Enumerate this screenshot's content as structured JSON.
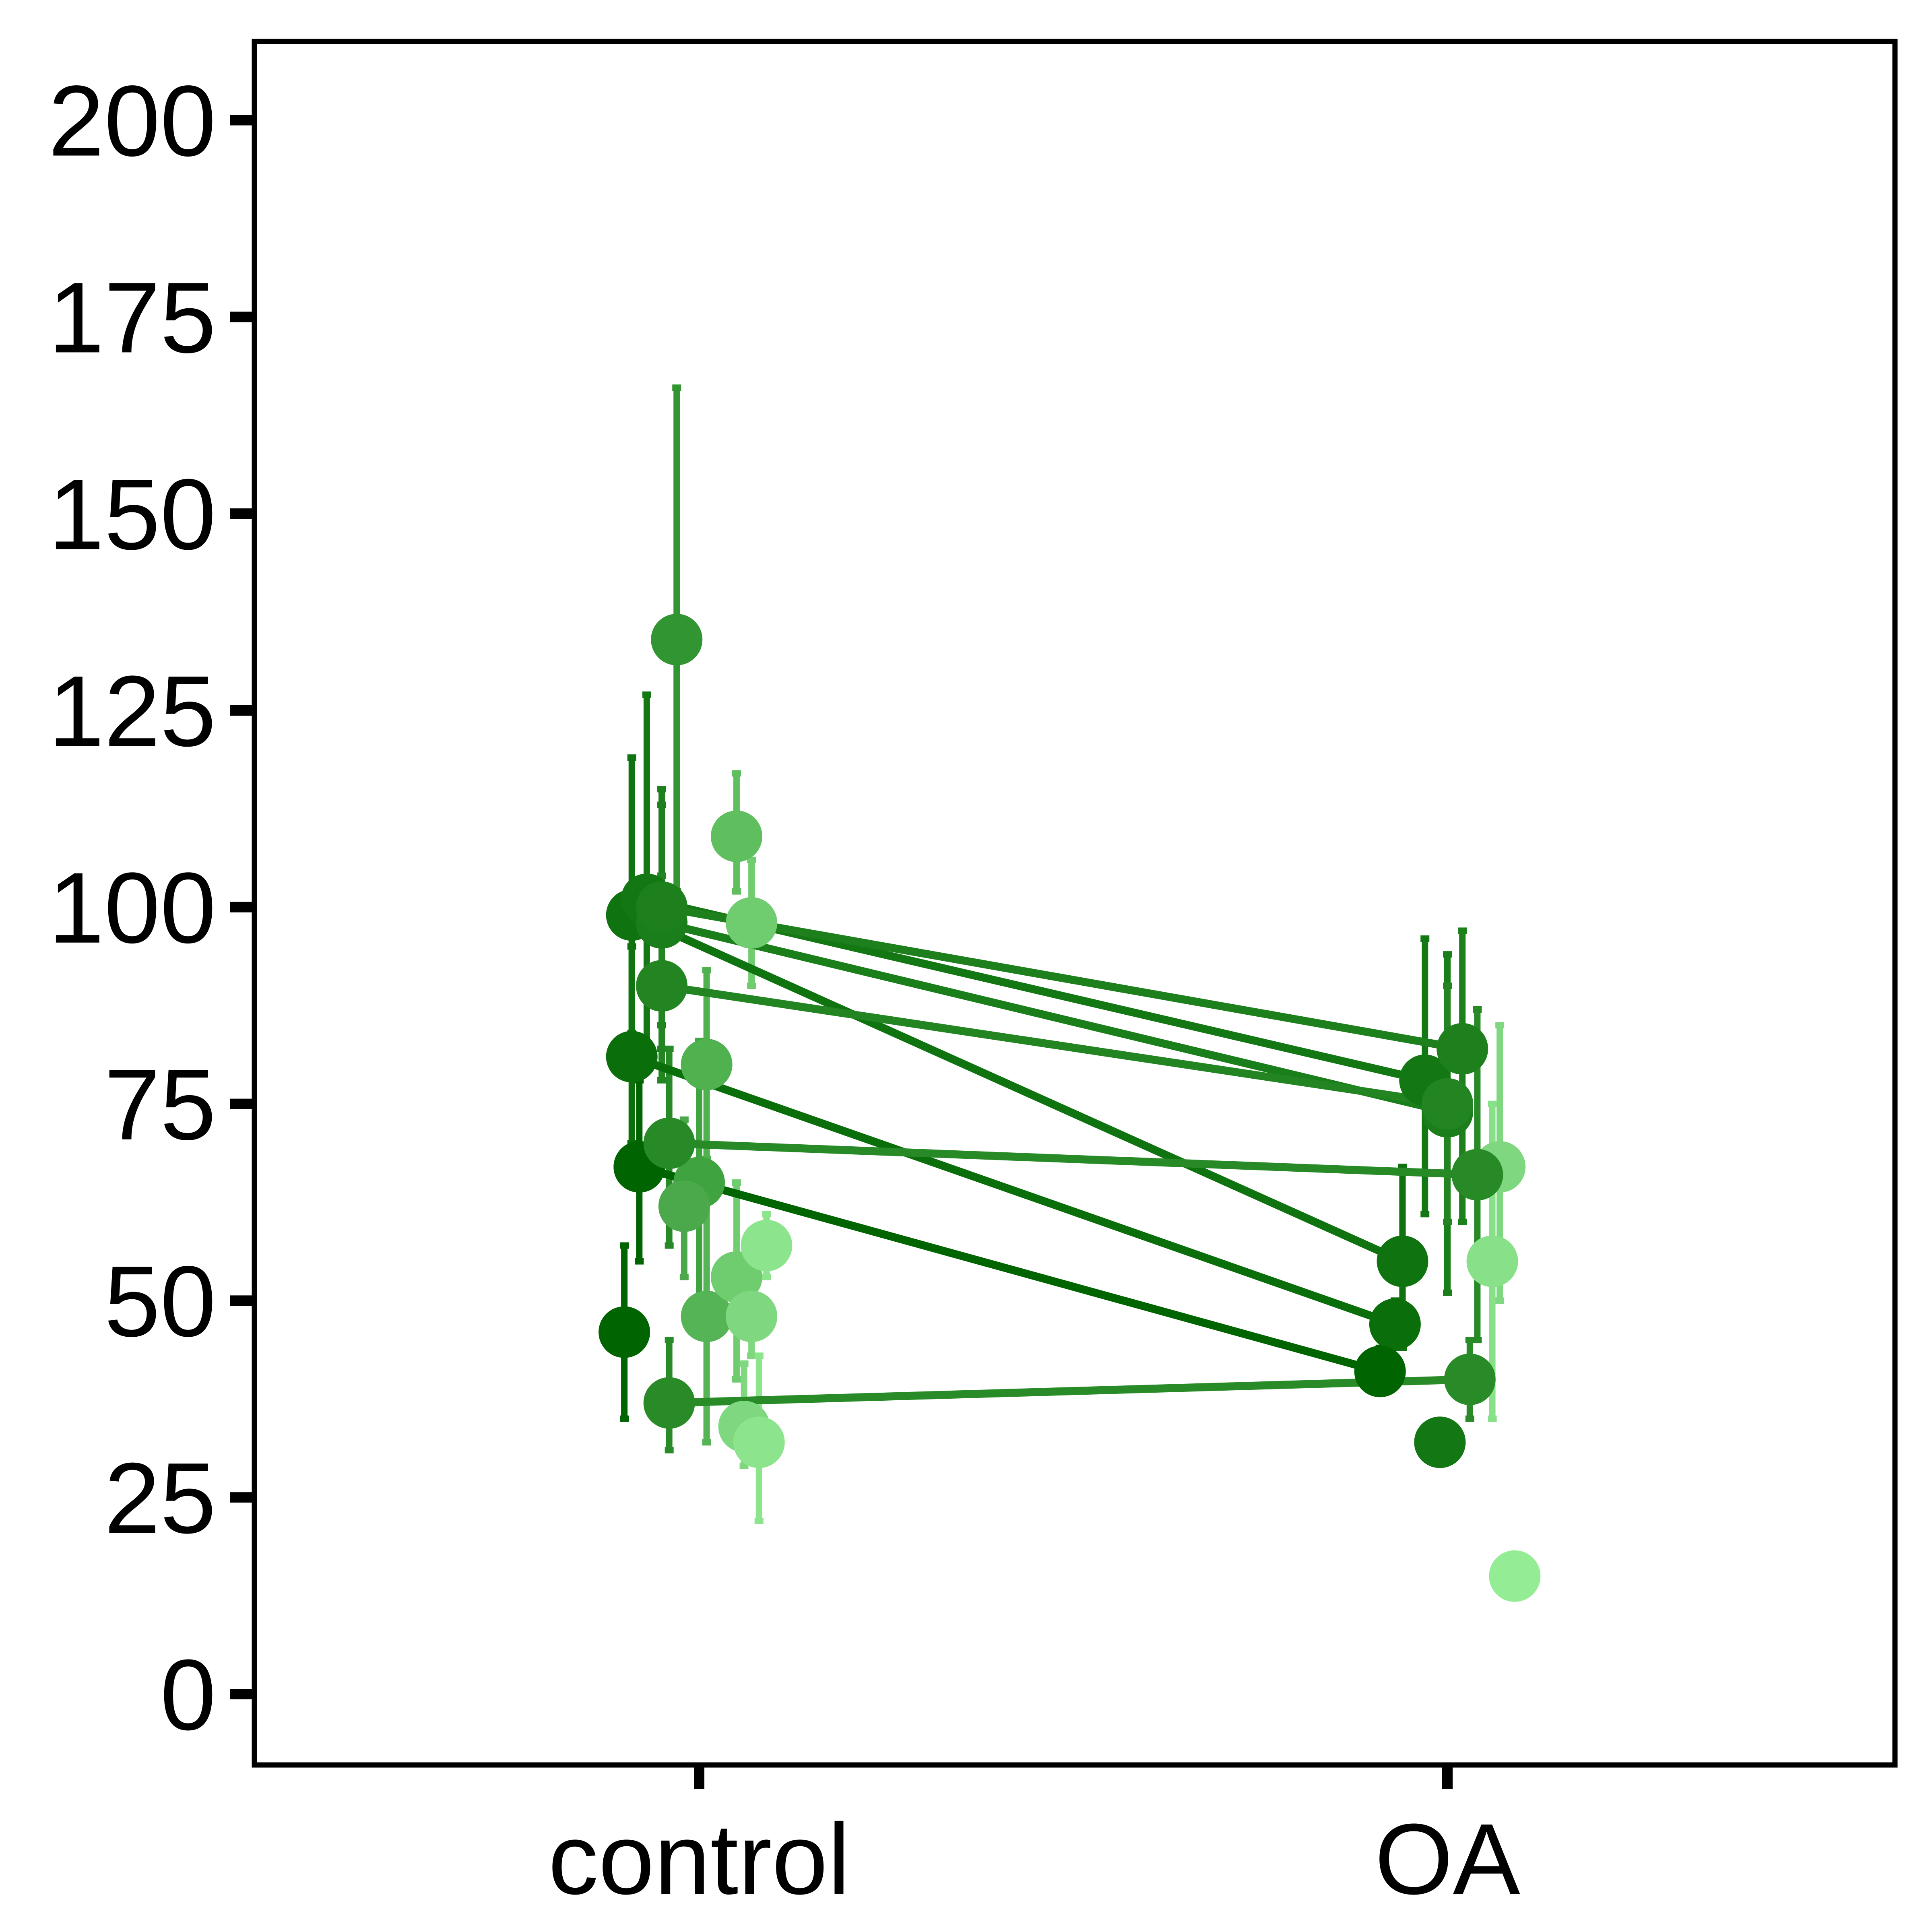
{
  "chart_data": {
    "type": "scatter",
    "title": "",
    "xlabel": "",
    "ylabel": "",
    "categories": [
      "control",
      "OA"
    ],
    "ylim": [
      -9,
      210
    ],
    "yticks": [
      0,
      25,
      50,
      75,
      100,
      125,
      150,
      175,
      200
    ],
    "grid": false,
    "legend": "none",
    "colors": [
      "#006400",
      "#0a6e0a",
      "#137813",
      "#1d801d",
      "#278a27",
      "#319531",
      "#3fa33f",
      "#4fb24f",
      "#5fbf5f",
      "#6fcc6f",
      "#7fd87f",
      "#8ce58c"
    ],
    "paired_series": [
      {
        "control": {
          "pos": -0.09,
          "y": 81,
          "err": [
            70,
            95
          ]
        },
        "OA": {
          "pos": -0.07,
          "y": 47,
          "err": [
            44,
            50
          ]
        },
        "color": "#0a6e0a"
      },
      {
        "control": {
          "pos": -0.08,
          "y": 67,
          "err": [
            55,
            78
          ]
        },
        "OA": {
          "pos": -0.09,
          "y": 41,
          "err": [
            39,
            44
          ]
        },
        "color": "#006400"
      },
      {
        "control": {
          "pos": -0.09,
          "y": 99,
          "err": [
            84,
            119
          ]
        },
        "OA": {
          "pos": -0.06,
          "y": 55,
          "err": [
            44,
            67
          ]
        },
        "color": "#0f730f"
      },
      {
        "control": {
          "pos": -0.07,
          "y": 101,
          "err": [
            80,
            127
          ]
        },
        "OA": {
          "pos": -0.03,
          "y": 78,
          "err": [
            61,
            96
          ]
        },
        "color": "#137813"
      },
      {
        "control": {
          "pos": -0.05,
          "y": 98,
          "err": [
            82,
            113
          ]
        },
        "OA": {
          "pos": 0.0,
          "y": 74,
          "err": [
            51,
            94
          ]
        },
        "color": "#1a7f1a"
      },
      {
        "control": {
          "pos": -0.05,
          "y": 100,
          "err": [
            85,
            115
          ]
        },
        "OA": {
          "pos": 0.02,
          "y": 82,
          "err": [
            60,
            97
          ]
        },
        "color": "#1d801d"
      },
      {
        "control": {
          "pos": -0.05,
          "y": 90,
          "err": [
            78,
            104
          ]
        },
        "OA": {
          "pos": 0.0,
          "y": 75,
          "err": [
            60,
            90
          ]
        },
        "color": "#228522"
      },
      {
        "control": {
          "pos": -0.04,
          "y": 70,
          "err": [
            57,
            82
          ]
        },
        "OA": {
          "pos": 0.04,
          "y": 66,
          "err": [
            45,
            87
          ]
        },
        "color": "#278a27"
      },
      {
        "control": {
          "pos": -0.04,
          "y": 37,
          "err": [
            31,
            45
          ]
        },
        "OA": {
          "pos": 0.03,
          "y": 40,
          "err": [
            35,
            45
          ]
        },
        "color": "#288b28"
      }
    ],
    "control_only": [
      {
        "pos": -0.1,
        "y": 46,
        "err": [
          35,
          57
        ],
        "color": "#006400"
      },
      {
        "pos": -0.03,
        "y": 134,
        "err": [
          102,
          166
        ],
        "color": "#319531"
      },
      {
        "pos": 0.0,
        "y": 65,
        "err": [
          49,
          83
        ],
        "color": "#3fa33f"
      },
      {
        "pos": -0.02,
        "y": 62,
        "err": [
          53,
          73
        ],
        "color": "#4ba94b"
      },
      {
        "pos": 0.01,
        "y": 80,
        "err": [
          68,
          92
        ],
        "color": "#4fb24f"
      },
      {
        "pos": 0.01,
        "y": 48,
        "err": [
          32,
          64
        ],
        "color": "#55b455"
      },
      {
        "pos": 0.05,
        "y": 109,
        "err": [
          102,
          117
        ],
        "color": "#5fbf5f"
      },
      {
        "pos": 0.07,
        "y": 98,
        "err": [
          90,
          106
        ],
        "color": "#6fcc6f"
      },
      {
        "pos": 0.05,
        "y": 53,
        "err": [
          40,
          65
        ],
        "color": "#6fcc6f"
      },
      {
        "pos": 0.07,
        "y": 48,
        "err": [
          43,
          53
        ],
        "color": "#7fd87f"
      },
      {
        "pos": 0.06,
        "y": 34,
        "err": [
          29,
          42
        ],
        "color": "#7fd87f"
      },
      {
        "pos": 0.08,
        "y": 32,
        "err": [
          22,
          43
        ],
        "color": "#8ce58c"
      },
      {
        "pos": 0.09,
        "y": 57,
        "err": [
          53,
          61
        ],
        "color": "#8ce58c"
      }
    ],
    "oa_only": [
      {
        "pos": -0.01,
        "y": 32,
        "err": null,
        "color": "#137813"
      },
      {
        "pos": 0.07,
        "y": 67,
        "err": [
          50,
          85
        ],
        "color": "#7fd87f"
      },
      {
        "pos": 0.06,
        "y": 55,
        "err": [
          35,
          75
        ],
        "color": "#88e088"
      },
      {
        "pos": 0.09,
        "y": 15,
        "err": null,
        "color": "#94ec94"
      }
    ]
  }
}
